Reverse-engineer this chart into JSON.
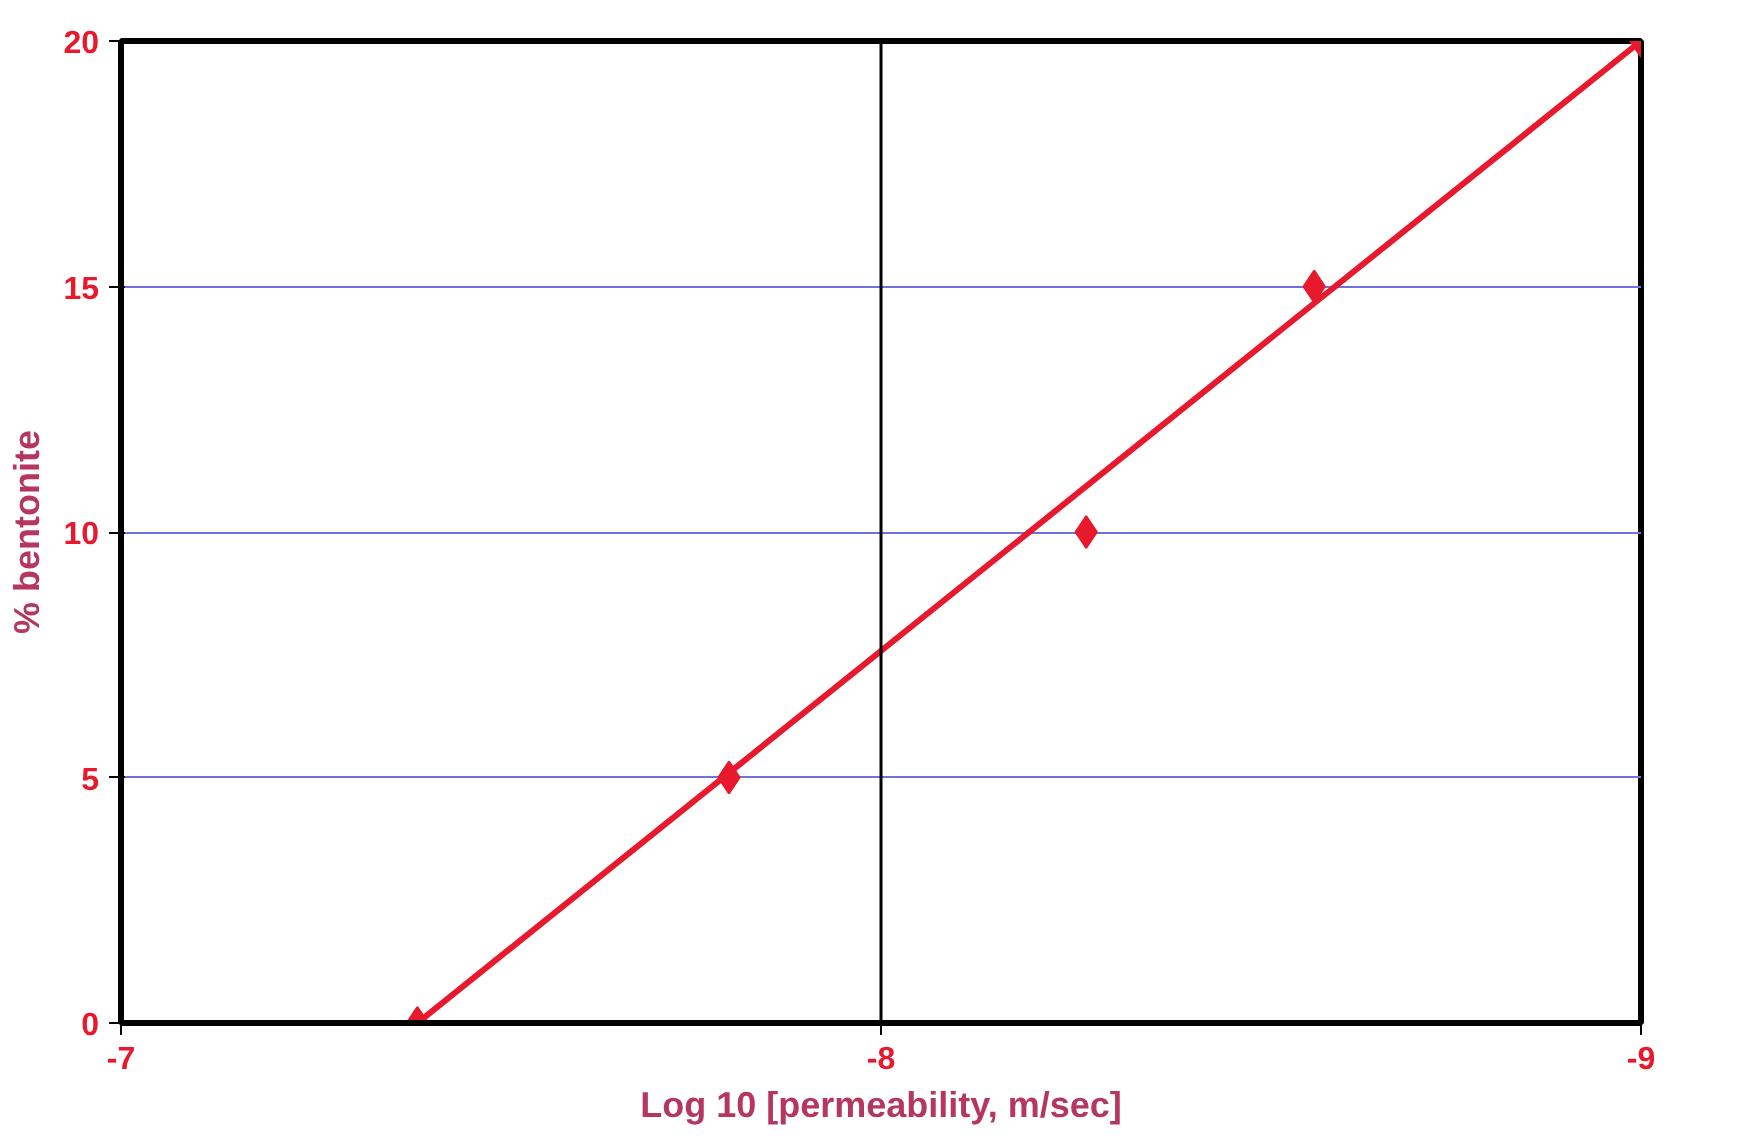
{
  "chart_data": {
    "type": "scatter",
    "xlabel": "Log 10 [permeability, m/sec]",
    "ylabel": "% bentonite",
    "x": [
      -7.39,
      -7.8,
      -8.27,
      -8.57,
      -9
    ],
    "series": [
      {
        "color": "#e8192c",
        "values": [
          0,
          5,
          10,
          15,
          20
        ],
        "marker": "diamond"
      },
      {
        "type": "line",
        "color": "#e8192c",
        "x": [
          -7.39,
          -9
        ],
        "values": [
          0,
          20
        ],
        "marker": "none",
        "line_style": "solid"
      }
    ],
    "xlim": [
      -7,
      -9
    ],
    "xticks": [
      -7,
      -8,
      -9
    ],
    "ylim": [
      0,
      20
    ],
    "yticks": [
      0,
      5,
      10,
      15,
      20
    ],
    "grid": "y",
    "ref_lines": [
      {
        "axis": "x",
        "value": -8,
        "color": "#000000"
      }
    ]
  }
}
